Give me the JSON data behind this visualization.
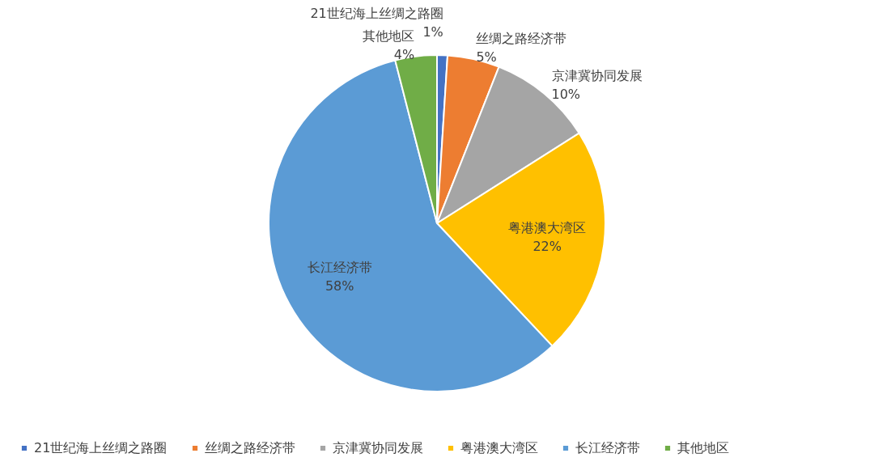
{
  "chart_data": {
    "type": "pie",
    "categories": [
      "21世纪海上丝绸之路圈",
      "丝绸之路经济带",
      "京津冀协同发展",
      "粤港澳大湾区",
      "长江经济带",
      "其他地区"
    ],
    "values": [
      1,
      5,
      10,
      22,
      58,
      4
    ],
    "value_labels": [
      "1%",
      "5%",
      "10%",
      "22%",
      "58%",
      "4%"
    ],
    "colors": [
      "#4472c4",
      "#ed7d31",
      "#a5a5a5",
      "#ffc000",
      "#5b9bd5",
      "#70ad47"
    ],
    "legend": "bottom"
  }
}
